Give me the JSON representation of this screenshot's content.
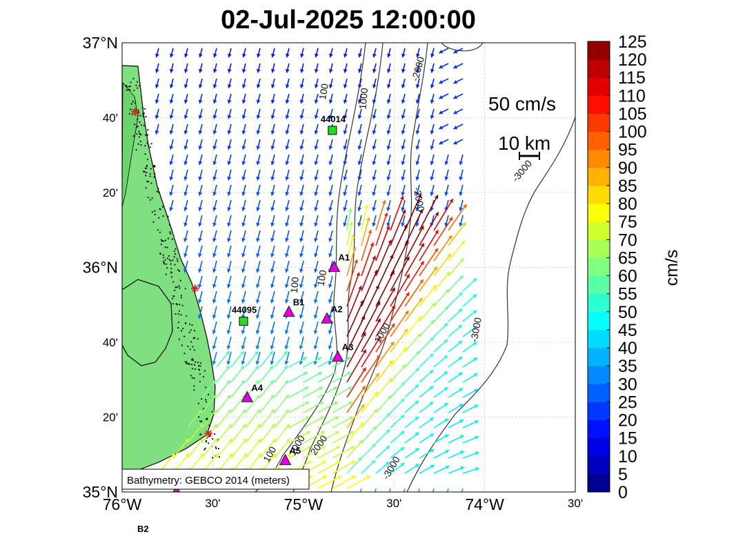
{
  "title": "02-Jul-2025 12:00:00",
  "axes": {
    "y_major": [
      {
        "label": "37°N",
        "lat": 37.0
      },
      {
        "label": "36°N",
        "lat": 36.0
      },
      {
        "label": "35°N",
        "lat": 35.0
      }
    ],
    "y_minor": [
      {
        "label": "40'",
        "lat": 36.6667
      },
      {
        "label": "20'",
        "lat": 36.3333
      },
      {
        "label": "40'",
        "lat": 35.6667
      },
      {
        "label": "20'",
        "lat": 35.3333
      }
    ],
    "x_major": [
      {
        "label": "76°W",
        "lon": -76.0
      },
      {
        "label": "75°W",
        "lon": -75.0
      },
      {
        "label": "74°W",
        "lon": -74.0
      }
    ],
    "x_minor": [
      {
        "label": "30'",
        "lon": -75.5
      },
      {
        "label": "30'",
        "lon": -74.5
      },
      {
        "label": "30'",
        "lon": -73.5
      }
    ],
    "lon_range": [
      -76.0,
      -73.5
    ],
    "lat_range": [
      35.0,
      37.0
    ],
    "grid": true
  },
  "legend": {
    "speed_scale_label": "50 cm/s",
    "distance_scale_label": "10 km",
    "bathymetry_note": "Bathymetry: GEBCO 2014 (meters)"
  },
  "colorbar": {
    "title": "cm/s",
    "min": 0,
    "max": 125,
    "ticks": [
      "0",
      "5",
      "10",
      "15",
      "20",
      "25",
      "30",
      "35",
      "40",
      "45",
      "50",
      "55",
      "60",
      "65",
      "70",
      "75",
      "80",
      "85",
      "90",
      "95",
      "100",
      "105",
      "110",
      "115",
      "120",
      "125"
    ]
  },
  "contour_labels": [
    {
      "text": "100",
      "lon": -74.87,
      "lat": 36.78,
      "rot": -80
    },
    {
      "text": "1000",
      "lon": -74.65,
      "lat": 36.75,
      "rot": -85
    },
    {
      "text": "-2000",
      "lon": -74.35,
      "lat": 36.88,
      "rot": -75
    },
    {
      "text": "-2000",
      "lon": -74.38,
      "lat": 36.3,
      "rot": 80
    },
    {
      "text": "-3000",
      "lon": -73.78,
      "lat": 36.42,
      "rot": -50
    },
    {
      "text": "100",
      "lon": -75.03,
      "lat": 35.92,
      "rot": -85
    },
    {
      "text": "100",
      "lon": -74.88,
      "lat": 35.95,
      "rot": -80
    },
    {
      "text": "-3000",
      "lon": -74.03,
      "lat": 35.72,
      "rot": -80
    },
    {
      "text": "1000",
      "lon": -74.55,
      "lat": 35.7,
      "rot": -60
    },
    {
      "text": "100",
      "lon": -75.17,
      "lat": 35.16,
      "rot": -60
    },
    {
      "text": "1000",
      "lon": -75.02,
      "lat": 35.2,
      "rot": -60
    },
    {
      "text": "2000",
      "lon": -74.9,
      "lat": 35.2,
      "rot": -55
    },
    {
      "text": "-3000",
      "lon": -74.5,
      "lat": 35.1,
      "rot": -60
    }
  ],
  "stations": [
    {
      "id": "44014",
      "type": "buoy",
      "lon": -74.84,
      "lat": 36.61,
      "label": "44014"
    },
    {
      "id": "44095",
      "type": "buoy",
      "lon": -75.33,
      "lat": 35.76,
      "label": "44095"
    },
    {
      "id": "A1",
      "type": "site",
      "lon": -74.83,
      "lat": 36.0,
      "label": "A1"
    },
    {
      "id": "B1",
      "type": "site",
      "lon": -75.08,
      "lat": 35.8,
      "label": "B1"
    },
    {
      "id": "A2",
      "type": "site",
      "lon": -74.87,
      "lat": 35.77,
      "label": "A2"
    },
    {
      "id": "A3",
      "type": "site",
      "lon": -74.81,
      "lat": 35.6,
      "label": "A3"
    },
    {
      "id": "A4",
      "type": "site",
      "lon": -75.31,
      "lat": 35.42,
      "label": "A4"
    },
    {
      "id": "A5",
      "type": "site",
      "lon": -75.1,
      "lat": 35.14,
      "label": "A5"
    },
    {
      "id": "B2",
      "type": "site",
      "lon": -75.7,
      "lat": 35.0,
      "label": "B2"
    }
  ],
  "current_field": {
    "description_values": {
      "grid_lon_step": 0.05,
      "grid_lat_step": 0.0417,
      "speed_regime_cm_s": {
        "shelf_north": 20,
        "gulf_stream_core": 120,
        "southern_shelf": 65,
        "offshore_north": 30
      }
    }
  }
}
